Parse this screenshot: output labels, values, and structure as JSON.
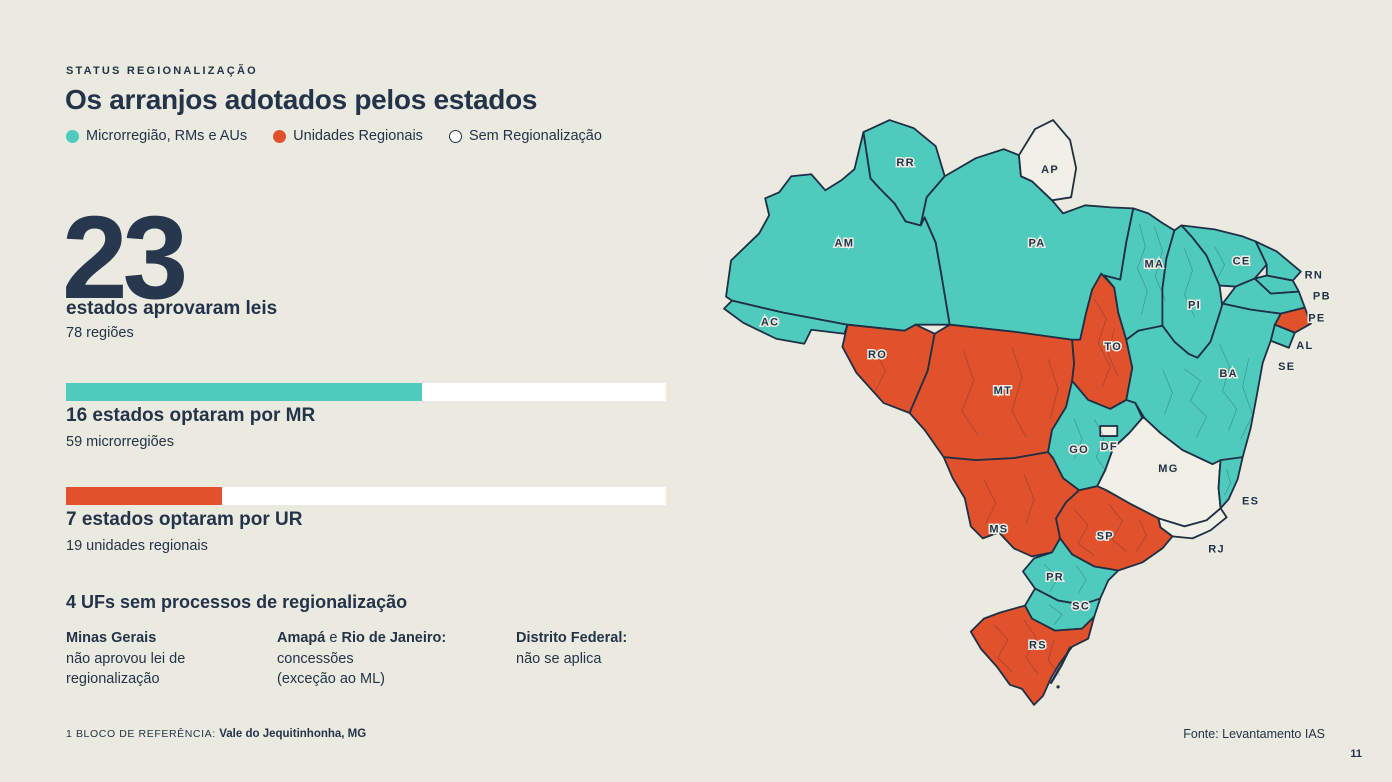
{
  "slide": {
    "kicker": "STATUS REGIONALIZAÇÃO",
    "title": "Os arranjos adotados pelos estados",
    "page_number": "11",
    "source": "Fonte: Levantamento IAS",
    "footnote": {
      "label": "1 BLOCO DE REFERÊNCIA: ",
      "value": "Vale do Jequitinhonha, MG"
    }
  },
  "colors": {
    "background": "#EBEAE0",
    "text": "#233349",
    "teal": "#4FCBBD",
    "orange": "#E0512C",
    "map_border": "#1F2F44",
    "no_region_fill": "#F1F0E7",
    "bar_track": "#FFFFFF"
  },
  "legend": {
    "items": [
      {
        "label": "Microrregião, RMs e AUs",
        "swatch": "teal"
      },
      {
        "label": "Unidades Regionais",
        "swatch": "orange"
      },
      {
        "label": "Sem Regionalização",
        "swatch": "outline"
      }
    ]
  },
  "stats": {
    "headline_number": "23",
    "headline_label": "estados aprovaram leis",
    "headline_sub": "78 regiões",
    "bars": [
      {
        "value": 16,
        "total": 27,
        "color_key": "teal",
        "title": "16 estados optaram por MR",
        "sub": "59 microrregiões"
      },
      {
        "value": 7,
        "total": 27,
        "color_key": "orange",
        "title": "7 estados optaram por UR",
        "sub": "19 unidades regionais"
      }
    ],
    "no_region": {
      "title": "4 UFs sem processos de regionalização",
      "columns": [
        {
          "head": "Minas Gerais",
          "mid": "",
          "head2": "",
          "lines": "não aprovou lei de\nregionalização"
        },
        {
          "head": "Amapá",
          "mid": " e ",
          "head2": "Rio de Janeiro:",
          "lines": "concessões\n(exceção ao ML)"
        },
        {
          "head": "Distrito Federal:",
          "mid": "",
          "head2": "",
          "lines": "não se aplica"
        }
      ]
    }
  },
  "map": {
    "status_colors": {
      "MR": "#4FCBBD",
      "UR": "#E0512C",
      "none": "#F1F0E7"
    },
    "states": [
      {
        "abbr": "AC",
        "status": "MR"
      },
      {
        "abbr": "AM",
        "status": "MR"
      },
      {
        "abbr": "RR",
        "status": "MR"
      },
      {
        "abbr": "PA",
        "status": "MR"
      },
      {
        "abbr": "AP",
        "status": "none"
      },
      {
        "abbr": "RO",
        "status": "UR"
      },
      {
        "abbr": "MT",
        "status": "UR"
      },
      {
        "abbr": "TO",
        "status": "UR"
      },
      {
        "abbr": "MA",
        "status": "MR"
      },
      {
        "abbr": "PI",
        "status": "MR"
      },
      {
        "abbr": "CE",
        "status": "MR"
      },
      {
        "abbr": "RN",
        "status": "MR"
      },
      {
        "abbr": "PB",
        "status": "MR"
      },
      {
        "abbr": "PE",
        "status": "MR"
      },
      {
        "abbr": "AL",
        "status": "UR"
      },
      {
        "abbr": "SE",
        "status": "MR"
      },
      {
        "abbr": "BA",
        "status": "MR"
      },
      {
        "abbr": "GO",
        "status": "MR"
      },
      {
        "abbr": "DF",
        "status": "none"
      },
      {
        "abbr": "MG",
        "status": "none"
      },
      {
        "abbr": "ES",
        "status": "MR"
      },
      {
        "abbr": "RJ",
        "status": "none"
      },
      {
        "abbr": "MS",
        "status": "UR"
      },
      {
        "abbr": "SP",
        "status": "UR"
      },
      {
        "abbr": "PR",
        "status": "MR"
      },
      {
        "abbr": "SC",
        "status": "MR"
      },
      {
        "abbr": "RS",
        "status": "UR"
      }
    ]
  },
  "chart_data": [
    {
      "type": "bar",
      "title": "Os arranjos adotados pelos estados",
      "categories": [
        "16 estados optaram por MR",
        "7 estados optaram por UR"
      ],
      "values": [
        16,
        7
      ],
      "value_total": 27,
      "annotations": [
        "59 microrregiões",
        "19 unidades regionais"
      ],
      "headline": {
        "value": 23,
        "label": "estados aprovaram leis",
        "regions": 78
      },
      "colors": [
        "#4FCBBD",
        "#E0512C"
      ],
      "legend_position": "top-left"
    },
    {
      "type": "heatmap",
      "subtype": "brazil-choropleth",
      "legend": [
        "Microrregião, RMs e AUs",
        "Unidades Regionais",
        "Sem Regionalização"
      ],
      "series": [
        {
          "name": "Microrregião, RMs e AUs",
          "states": [
            "AC",
            "AM",
            "RR",
            "PA",
            "MA",
            "PI",
            "CE",
            "RN",
            "PB",
            "PE",
            "BA",
            "SE",
            "GO",
            "ES",
            "PR",
            "SC"
          ]
        },
        {
          "name": "Unidades Regionais",
          "states": [
            "RO",
            "MT",
            "TO",
            "MS",
            "SP",
            "AL",
            "RS"
          ]
        },
        {
          "name": "Sem Regionalização",
          "states": [
            "AP",
            "MG",
            "RJ",
            "DF"
          ]
        }
      ]
    }
  ]
}
